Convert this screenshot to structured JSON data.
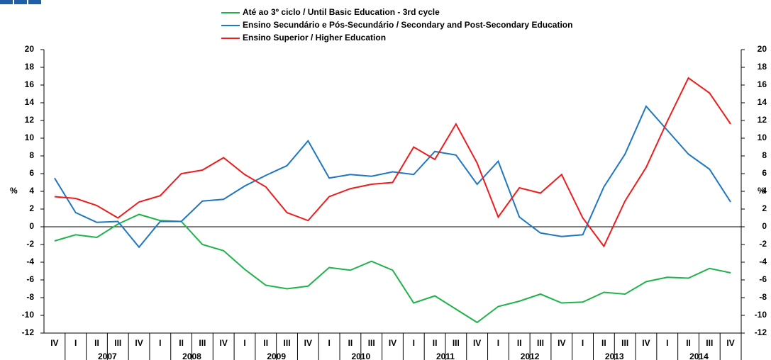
{
  "chart_data": {
    "type": "line",
    "categories": [
      "IV",
      "I",
      "II",
      "III",
      "IV",
      "I",
      "II",
      "III",
      "IV",
      "I",
      "II",
      "III",
      "IV",
      "I",
      "II",
      "III",
      "IV",
      "I",
      "II",
      "III",
      "IV",
      "I",
      "II",
      "III",
      "IV",
      "I",
      "II",
      "III",
      "IV",
      "I",
      "II",
      "III",
      "IV"
    ],
    "groups": [
      {
        "label": null,
        "count": 1
      },
      {
        "label": "2007",
        "count": 4
      },
      {
        "label": "2008",
        "count": 4
      },
      {
        "label": "2009",
        "count": 4
      },
      {
        "label": "2010",
        "count": 4
      },
      {
        "label": "2011",
        "count": 4
      },
      {
        "label": "2012",
        "count": 4
      },
      {
        "label": "2013",
        "count": 4
      },
      {
        "label": "2014",
        "count": 4
      }
    ],
    "series": [
      {
        "name": "Até ao 3º ciclo / Until Basic Education - 3rd cycle",
        "color": "#1fb34a",
        "values": [
          -1.6,
          -0.9,
          -1.2,
          0.3,
          1.4,
          0.7,
          0.6,
          -2.0,
          -2.7,
          -4.8,
          -6.6,
          -7.0,
          -6.7,
          -4.6,
          -4.9,
          -3.9,
          -4.9,
          -8.6,
          -7.8,
          -9.3,
          -10.8,
          -9.0,
          -8.4,
          -7.6,
          -8.6,
          -8.5,
          -7.4,
          -7.6,
          -6.2,
          -5.7,
          -5.8,
          -4.7,
          -5.2
        ]
      },
      {
        "name": "Ensino Secundário e Pós-Secundário / Secondary and Post-Secondary Education",
        "color": "#1f77c0",
        "values": [
          5.5,
          1.6,
          0.5,
          0.6,
          -2.3,
          0.6,
          0.6,
          2.9,
          3.1,
          4.6,
          5.8,
          6.9,
          9.7,
          5.5,
          5.9,
          5.7,
          6.2,
          5.9,
          8.5,
          8.1,
          4.8,
          7.4,
          1.1,
          -0.7,
          -1.1,
          -0.9,
          4.5,
          8.2,
          13.6,
          10.9,
          8.2,
          6.5,
          2.8
        ]
      },
      {
        "name": "Ensino Superior / Higher Education",
        "color": "#ee1c1c",
        "values": [
          3.4,
          3.2,
          2.4,
          1.0,
          2.8,
          3.5,
          6.0,
          6.4,
          7.8,
          5.9,
          4.5,
          1.6,
          0.7,
          3.4,
          4.3,
          4.8,
          5.0,
          9.0,
          7.6,
          11.6,
          7.2,
          1.1,
          4.4,
          3.8,
          5.9,
          1.0,
          -2.2,
          2.9,
          6.7,
          11.9,
          16.8,
          15.1,
          11.6
        ]
      }
    ],
    "ylabel": "%",
    "y2label": "%",
    "ylim": [
      -12,
      20
    ],
    "yticks": [
      -12,
      -10,
      -8,
      -6,
      -4,
      -2,
      0,
      2,
      4,
      6,
      8,
      10,
      12,
      14,
      16,
      18,
      20
    ],
    "y2lim": [
      -12,
      20
    ],
    "y2ticks": [
      -12,
      -10,
      -8,
      -6,
      -4,
      -2,
      0,
      2,
      4,
      6,
      8,
      10,
      12,
      14,
      16,
      18,
      20
    ]
  }
}
